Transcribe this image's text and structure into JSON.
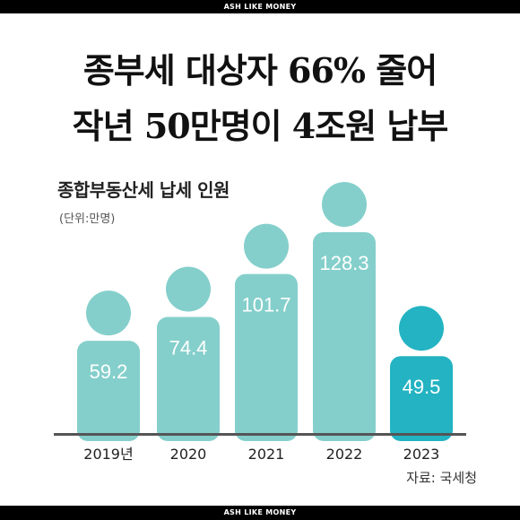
{
  "banner_top": "ASH LIKE MONEY",
  "banner_bottom": "ASH LIKE MONEY",
  "headline": {
    "line1": "종부세 대상자 66% 줄어",
    "line2": "작년 50만명이 4조원 납부"
  },
  "source": "자료: 국세청",
  "colors": {
    "bar": "#84cfcb",
    "highlight": "#23b3c2",
    "axis": "#555555"
  },
  "chart_data": {
    "type": "bar",
    "title": "종합부동산세 납세 인원",
    "unit": "(단위:만명)",
    "categories": [
      "2019년",
      "2020",
      "2021",
      "2022",
      "2023"
    ],
    "values": [
      59.2,
      74.4,
      101.7,
      128.3,
      49.5
    ],
    "value_labels": [
      "59.2",
      "74.4",
      "101.7",
      "128.3",
      "49.5"
    ],
    "highlight_index": 4,
    "xlabel": "",
    "ylabel": "",
    "ylim": [
      0,
      128.3
    ],
    "grid": false
  }
}
